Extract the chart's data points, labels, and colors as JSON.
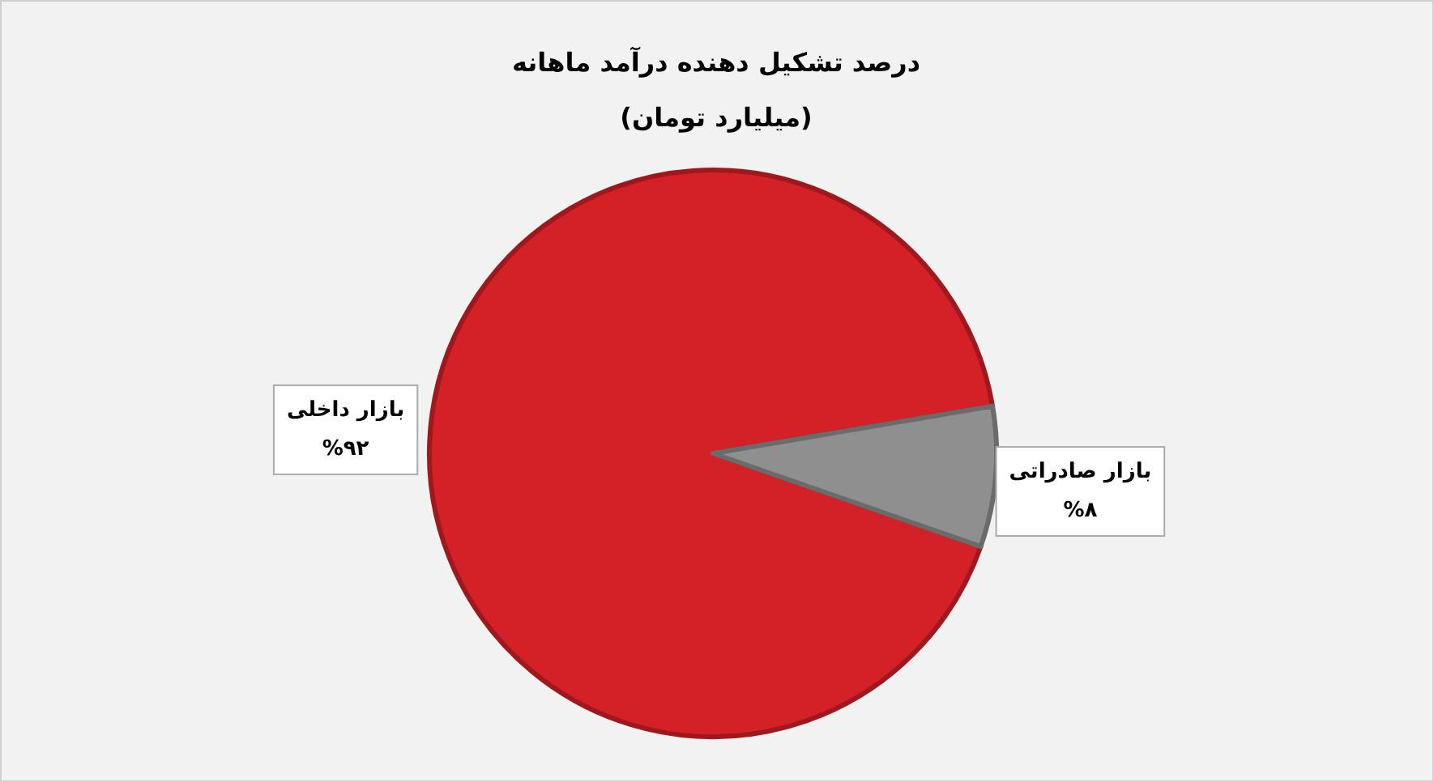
{
  "chart_data": {
    "type": "pie",
    "title": "درصد تشکیل دهنده درآمد ماهانه",
    "subtitle": "(میلیارد تومان)",
    "categories": [
      "بازار داخلی",
      "بازار صادراتی"
    ],
    "values": [
      92,
      8
    ],
    "colors": [
      "#d42027",
      "#8f8f8f"
    ],
    "value_labels": [
      "%۹۲",
      "%۸"
    ]
  }
}
